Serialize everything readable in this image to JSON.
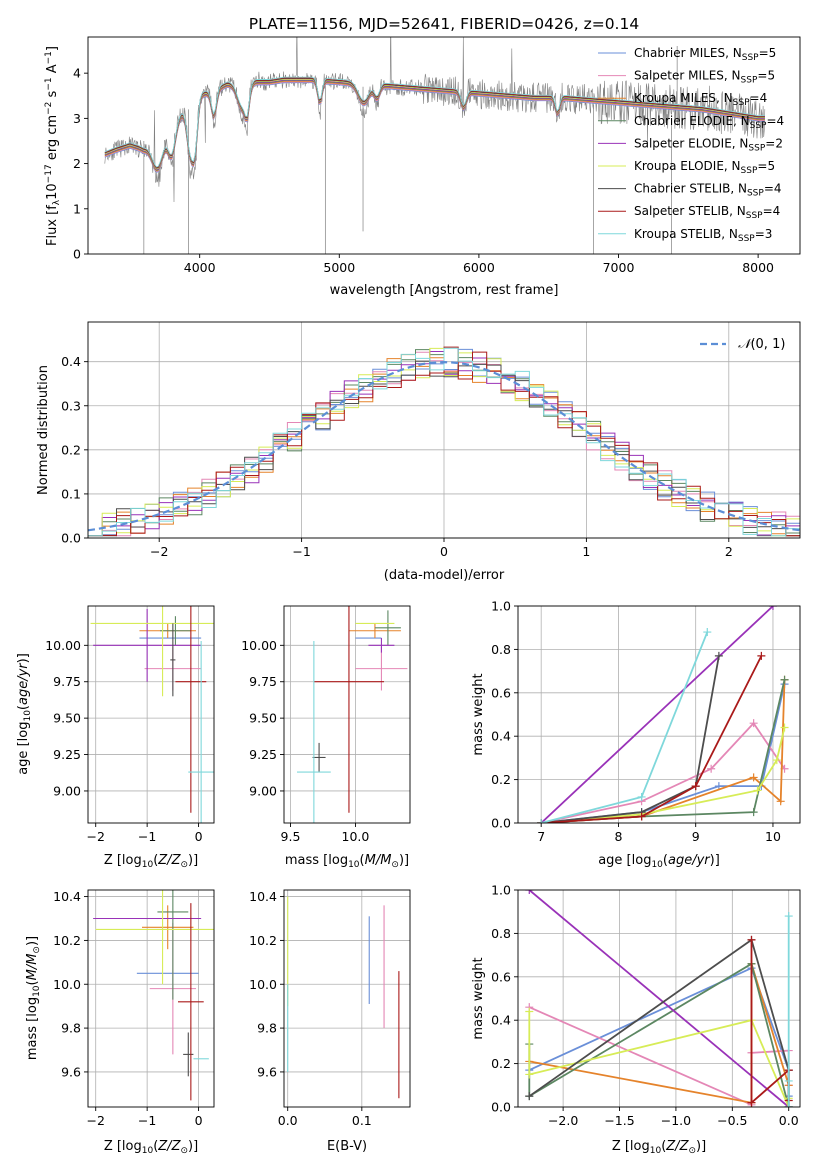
{
  "figure": {
    "title": "PLATE=1156, MJD=52641, FIBERID=0426, z=0.14"
  },
  "series_styles": [
    {
      "name": "Chabrier MILES, N_SSP=5",
      "color": "#6a8fd8"
    },
    {
      "name": "Salpeter MILES, N_SSP=5",
      "color": "#e487b6"
    },
    {
      "name": "Kroupa MILES, N_SSP=4",
      "color": "#e5832b"
    },
    {
      "name": "Chabrier ELODIE, N_SSP=4",
      "color": "#5c8762"
    },
    {
      "name": "Salpeter ELODIE, N_SSP=2",
      "color": "#9932b8"
    },
    {
      "name": "Kroupa ELODIE, N_SSP=5",
      "color": "#d7ec57"
    },
    {
      "name": "Chabrier STELIB, N_SSP=4",
      "color": "#4d4d4d"
    },
    {
      "name": "Salpeter STELIB, N_SSP=4",
      "color": "#aa1a1a"
    },
    {
      "name": "Kroupa STELIB, N_SSP=3",
      "color": "#7fd8db"
    }
  ],
  "chart_data": [
    {
      "id": "spectrum",
      "type": "line",
      "title": "PLATE=1156, MJD=52641, FIBERID=0426, z=0.14",
      "xlabel": "wavelength [Angstrom, rest frame]",
      "ylabel": "Flux [f_λ 10^-17 erg cm^-2 s^-1 A^-1]",
      "xlim": [
        3200,
        8300
      ],
      "ylim": [
        0,
        4.8
      ],
      "xticks": [
        4000,
        5000,
        6000,
        7000,
        8000
      ],
      "yticks": [
        0,
        1,
        2,
        3,
        4
      ],
      "grid": false,
      "legend_position": "right",
      "legend": [
        "Chabrier MILES, N_SSP=5",
        "Salpeter MILES, N_SSP=5",
        "Kroupa MILES, N_SSP=4",
        "Chabrier ELODIE, N_SSP=4",
        "Salpeter ELODIE, N_SSP=2",
        "Kroupa ELODIE, N_SSP=5",
        "Chabrier STELIB, N_SSP=4",
        "Salpeter STELIB, N_SSP=4",
        "Kroupa STELIB, N_SSP=3"
      ],
      "data_color": "#808080",
      "continuum": {
        "x": [
          3320,
          3400,
          3500,
          3600,
          3700,
          3800,
          3900,
          4000,
          4100,
          4200,
          4300,
          4400,
          4500,
          4600,
          4800,
          5000,
          5200,
          5400,
          5600,
          5800,
          6000,
          6200,
          6400,
          6600,
          6800,
          7000,
          7200,
          7400,
          7600,
          7800,
          8000,
          8050
        ],
        "y": [
          2.2,
          2.3,
          2.4,
          2.3,
          2.5,
          2.8,
          3.2,
          3.5,
          3.6,
          3.75,
          3.7,
          3.8,
          3.8,
          3.85,
          3.85,
          3.8,
          3.75,
          3.7,
          3.65,
          3.6,
          3.55,
          3.5,
          3.45,
          3.45,
          3.4,
          3.35,
          3.3,
          3.25,
          3.2,
          3.1,
          3.0,
          3.0
        ]
      }
    },
    {
      "id": "residuals",
      "type": "histogram",
      "xlabel": "(data-model)/error",
      "ylabel": "Normed distribution",
      "xlim": [
        -2.5,
        2.5
      ],
      "ylim": [
        0,
        0.49
      ],
      "xticks": [
        -2,
        -1,
        0,
        1,
        2
      ],
      "yticks": [
        0.0,
        0.1,
        0.2,
        0.3,
        0.4
      ],
      "grid": true,
      "legend_position": "top-right",
      "legend": [
        "N(0,1)"
      ],
      "reference_curve": {
        "name": "N(0,1)",
        "color": "#5b8ed6",
        "mean": 0,
        "sigma": 1
      },
      "bin_width": 0.1
    },
    {
      "id": "age-vs-Z",
      "type": "errorbar",
      "xlabel": "Z [log10(Z/Z☉)]",
      "ylabel": "age [log10(age/yr)]",
      "xlim": [
        -2.15,
        0.3
      ],
      "ylim": [
        8.78,
        10.27
      ],
      "xticks": [
        -2,
        -1,
        0
      ],
      "yticks": [
        9.0,
        9.25,
        9.5,
        9.75,
        10.0
      ],
      "grid": true,
      "series": [
        {
          "name": "Chabrier MILES, N_SSP=5",
          "x": -0.55,
          "xerr": 0.6,
          "y": 10.05,
          "yerr": 0.0
        },
        {
          "name": "Salpeter MILES, N_SSP=5",
          "x": -0.5,
          "xerr": 0.55,
          "y": 9.84,
          "yerr": 0.15
        },
        {
          "name": "Kroupa MILES, N_SSP=4",
          "x": -0.6,
          "xerr": 0.55,
          "y": 10.1,
          "yerr": 0.05
        },
        {
          "name": "Chabrier ELODIE, N_SSP=4",
          "x": -0.45,
          "xerr": 0.3,
          "y": 10.1,
          "yerr": 0.1
        },
        {
          "name": "Salpeter ELODIE, N_SSP=2",
          "x": -1.0,
          "xerr": 1.05,
          "y": 10.0,
          "yerr": 0.25
        },
        {
          "name": "Kroupa ELODIE, N_SSP=5",
          "x": -0.7,
          "xerr": 1.4,
          "y": 10.15,
          "yerr": 0.5
        },
        {
          "name": "Chabrier STELIB, N_SSP=4",
          "x": -0.5,
          "xerr": 0.05,
          "y": 9.9,
          "yerr": 0.25
        },
        {
          "name": "Salpeter STELIB, N_SSP=4",
          "x": -0.15,
          "xerr": 0.3,
          "y": 9.75,
          "yerr": 0.9
        },
        {
          "name": "Kroupa STELIB, N_SSP=3",
          "x": 0.05,
          "xerr": 0.25,
          "y": 9.13,
          "yerr": 0.9
        }
      ]
    },
    {
      "id": "age-vs-mass",
      "type": "errorbar",
      "xlabel": "mass [log10(M/M☉)]",
      "ylabel": "",
      "xlim": [
        9.45,
        10.42
      ],
      "ylim": [
        8.78,
        10.27
      ],
      "xticks": [
        9.5,
        10.0
      ],
      "yticks": [
        9.0,
        9.25,
        9.5,
        9.75,
        10.0
      ],
      "grid": true,
      "series": [
        {
          "name": "Chabrier MILES, N_SSP=5",
          "x": 10.1,
          "xerr": 0.1,
          "y": 10.05,
          "yerr": 0.0
        },
        {
          "name": "Salpeter MILES, N_SSP=5",
          "x": 10.2,
          "xerr": 0.2,
          "y": 9.84,
          "yerr": 0.15
        },
        {
          "name": "Kroupa MILES, N_SSP=4",
          "x": 10.15,
          "xerr": 0.2,
          "y": 10.1,
          "yerr": 0.05
        },
        {
          "name": "Chabrier ELODIE, N_SSP=4",
          "x": 10.25,
          "xerr": 0.1,
          "y": 10.12,
          "yerr": 0.12
        },
        {
          "name": "Salpeter ELODIE, N_SSP=2",
          "x": 10.2,
          "xerr": 0.1,
          "y": 10.0,
          "yerr": 0.05
        },
        {
          "name": "Kroupa ELODIE, N_SSP=5",
          "x": 10.15,
          "xerr": 0.15,
          "y": 10.15,
          "yerr": 0.0
        },
        {
          "name": "Chabrier STELIB, N_SSP=4",
          "x": 9.72,
          "xerr": 0.05,
          "y": 9.23,
          "yerr": 0.1
        },
        {
          "name": "Salpeter STELIB, N_SSP=4",
          "x": 9.95,
          "xerr": 0.27,
          "y": 9.75,
          "yerr": 0.9
        },
        {
          "name": "Kroupa STELIB, N_SSP=3",
          "x": 9.68,
          "xerr": 0.13,
          "y": 9.13,
          "yerr": 0.9
        }
      ]
    },
    {
      "id": "weight-vs-age",
      "type": "line",
      "xlabel": "age [log10(age/yr)]",
      "ylabel": "mass weight",
      "xlim": [
        6.7,
        10.35
      ],
      "ylim": [
        0,
        1.0
      ],
      "xticks": [
        7,
        8,
        9,
        10
      ],
      "yticks": [
        0.0,
        0.2,
        0.4,
        0.6,
        0.8,
        1.0
      ],
      "grid": true,
      "series": [
        {
          "name": "Chabrier MILES, N_SSP=5",
          "x": [
            7.0,
            8.3,
            9.3,
            9.85,
            10.15
          ],
          "y": [
            0.0,
            0.05,
            0.17,
            0.17,
            0.64
          ]
        },
        {
          "name": "Salpeter MILES, N_SSP=5",
          "x": [
            7.0,
            8.3,
            9.2,
            9.75,
            10.15
          ],
          "y": [
            0.0,
            0.1,
            0.25,
            0.46,
            0.25
          ]
        },
        {
          "name": "Kroupa MILES, N_SSP=4",
          "x": [
            7.0,
            8.3,
            9.75,
            10.1,
            10.15
          ],
          "y": [
            0.0,
            0.03,
            0.21,
            0.1,
            0.66
          ]
        },
        {
          "name": "Chabrier ELODIE, N_SSP=4",
          "x": [
            7.0,
            8.3,
            9.75,
            10.15
          ],
          "y": [
            0.0,
            0.03,
            0.05,
            0.66
          ]
        },
        {
          "name": "Salpeter ELODIE, N_SSP=2",
          "x": [
            7.0,
            10.0
          ],
          "y": [
            0.0,
            1.0
          ]
        },
        {
          "name": "Kroupa ELODIE, N_SSP=5",
          "x": [
            7.0,
            8.3,
            9.8,
            10.05,
            10.15
          ],
          "y": [
            0.0,
            0.04,
            0.15,
            0.29,
            0.44
          ]
        },
        {
          "name": "Chabrier STELIB, N_SSP=4",
          "x": [
            7.0,
            8.3,
            9.0,
            9.3
          ],
          "y": [
            0.0,
            0.05,
            0.17,
            0.77
          ]
        },
        {
          "name": "Salpeter STELIB, N_SSP=4",
          "x": [
            7.0,
            8.3,
            9.0,
            9.85
          ],
          "y": [
            0.0,
            0.03,
            0.17,
            0.77
          ]
        },
        {
          "name": "Kroupa STELIB, N_SSP=3",
          "x": [
            7.0,
            8.3,
            9.15
          ],
          "y": [
            0.0,
            0.12,
            0.88
          ]
        }
      ]
    },
    {
      "id": "mass-vs-Z",
      "type": "errorbar",
      "xlabel": "Z [log10(Z/Z☉)]",
      "ylabel": "mass [log10(M/M☉)]",
      "xlim": [
        -2.15,
        0.3
      ],
      "ylim": [
        9.44,
        10.43
      ],
      "xticks": [
        -2,
        -1,
        0
      ],
      "yticks": [
        9.6,
        9.8,
        10.0,
        10.2,
        10.4
      ],
      "grid": true,
      "series": [
        {
          "name": "Chabrier MILES, N_SSP=5",
          "x": -0.6,
          "xerr": 0.6,
          "y": 10.05,
          "yerr": 0.0
        },
        {
          "name": "Salpeter MILES, N_SSP=5",
          "x": -0.5,
          "xerr": 0.45,
          "y": 9.98,
          "yerr": 0.3
        },
        {
          "name": "Kroupa MILES, N_SSP=4",
          "x": -0.6,
          "xerr": 0.5,
          "y": 10.26,
          "yerr": 0.1
        },
        {
          "name": "Chabrier ELODIE, N_SSP=4",
          "x": -0.5,
          "xerr": 0.3,
          "y": 10.33,
          "yerr": 0.4
        },
        {
          "name": "Salpeter ELODIE, N_SSP=2",
          "x": -1.0,
          "xerr": 1.05,
          "y": 10.3,
          "yerr": 0.0
        },
        {
          "name": "Kroupa ELODIE, N_SSP=5",
          "x": -0.7,
          "xerr": 1.3,
          "y": 10.25,
          "yerr": 0.25
        },
        {
          "name": "Chabrier STELIB, N_SSP=4",
          "x": -0.2,
          "xerr": 0.1,
          "y": 9.68,
          "yerr": 0.1
        },
        {
          "name": "Salpeter STELIB, N_SSP=4",
          "x": -0.15,
          "xerr": 0.25,
          "y": 9.92,
          "yerr": 0.45
        },
        {
          "name": "Kroupa STELIB, N_SSP=3",
          "x": 0.05,
          "xerr": 0.15,
          "y": 9.66,
          "yerr": 0.0
        }
      ]
    },
    {
      "id": "mass-vs-EBV",
      "type": "errorbar",
      "xlabel": "E(B-V)",
      "ylabel": "",
      "xlim": [
        -0.005,
        0.165
      ],
      "ylim": [
        9.44,
        10.43
      ],
      "xticks": [
        0.0,
        0.1
      ],
      "yticks": [
        9.6,
        9.8,
        10.0,
        10.2,
        10.4
      ],
      "grid": true,
      "series": [
        {
          "name": "Chabrier MILES, N_SSP=5",
          "x": 0.11,
          "y": 10.11,
          "yerr": 0.2
        },
        {
          "name": "Salpeter MILES, N_SSP=5",
          "x": 0.13,
          "y": 10.08,
          "yerr": 0.28
        },
        {
          "name": "Kroupa ELODIE, N_SSP=5",
          "x": 0.0,
          "y": 10.15,
          "yerr": 0.25
        },
        {
          "name": "Salpeter STELIB, N_SSP=4",
          "x": 0.15,
          "y": 9.77,
          "yerr": 0.29
        },
        {
          "name": "Kroupa STELIB, N_SSP=3",
          "x": 0.0,
          "y": 9.8,
          "yerr": 0.2
        }
      ]
    },
    {
      "id": "weight-vs-Z",
      "type": "line",
      "xlabel": "Z [log10(Z/Z☉)]",
      "ylabel": "mass weight",
      "xlim": [
        -2.4,
        0.1
      ],
      "ylim": [
        0,
        1.0
      ],
      "xticks": [
        -2.0,
        -1.5,
        -1.0,
        -0.5,
        0.0
      ],
      "yticks": [
        0.0,
        0.2,
        0.4,
        0.6,
        0.8,
        1.0
      ],
      "grid": true,
      "series": [
        {
          "name": "Chabrier MILES, N_SSP=5",
          "x": [
            -2.3,
            -0.33,
            0.0,
            0.0,
            0.0
          ],
          "y": [
            0.17,
            0.64,
            0.17,
            0.0,
            0.05
          ]
        },
        {
          "name": "Salpeter MILES, N_SSP=5",
          "x": [
            -2.3,
            -0.33,
            -0.33,
            0.0,
            0.0
          ],
          "y": [
            0.46,
            0.01,
            0.25,
            0.26,
            0.1
          ]
        },
        {
          "name": "Kroupa MILES, N_SSP=4",
          "x": [
            -2.3,
            -0.33,
            -0.33,
            0.0
          ],
          "y": [
            0.21,
            0.02,
            0.66,
            0.1
          ]
        },
        {
          "name": "Chabrier ELODIE, N_SSP=4",
          "x": [
            -2.3,
            -2.3,
            -0.33,
            0.0
          ],
          "y": [
            0.29,
            0.05,
            0.66,
            0.0
          ]
        },
        {
          "name": "Salpeter ELODIE, N_SSP=2",
          "x": [
            -2.3,
            0.0
          ],
          "y": [
            1.0,
            0.0
          ]
        },
        {
          "name": "Kroupa ELODIE, N_SSP=5",
          "x": [
            -2.3,
            -2.3,
            -0.33,
            0.0,
            0.0
          ],
          "y": [
            0.44,
            0.15,
            0.4,
            0.0,
            0.04
          ]
        },
        {
          "name": "Chabrier STELIB, N_SSP=4",
          "x": [
            -2.3,
            -0.33,
            0.0,
            0.0
          ],
          "y": [
            0.05,
            0.77,
            0.17,
            0.0
          ]
        },
        {
          "name": "Salpeter STELIB, N_SSP=4",
          "x": [
            -0.33,
            -0.33,
            0.0,
            0.0
          ],
          "y": [
            0.77,
            0.02,
            0.17,
            0.03
          ]
        },
        {
          "name": "Kroupa STELIB, N_SSP=3",
          "x": [
            0.0,
            0.0,
            0.0
          ],
          "y": [
            0.88,
            0.0,
            0.12
          ]
        }
      ]
    }
  ]
}
